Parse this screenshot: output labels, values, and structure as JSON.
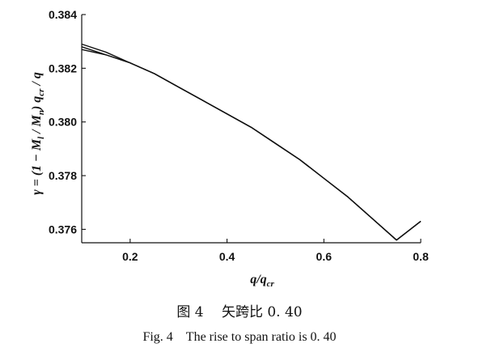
{
  "chart_data": {
    "type": "line",
    "xlabel": "q/q_cr",
    "ylabel": "γ = (1 − M_l / M_n) q_cr / q",
    "xlim": [
      0.1,
      0.8
    ],
    "ylim": [
      0.3755,
      0.384
    ],
    "x_ticks": [
      0.2,
      0.4,
      0.6,
      0.8
    ],
    "y_ticks": [
      0.376,
      0.378,
      0.38,
      0.382,
      0.384
    ],
    "x_tick_labels": [
      "0.2",
      "0.4",
      "0.6",
      "0.8"
    ],
    "y_tick_labels": [
      "0.376",
      "0.378",
      "0.380",
      "0.382",
      "0.384"
    ],
    "series": [
      {
        "x": [
          0.1,
          0.15,
          0.2,
          0.25,
          0.3,
          0.35,
          0.4,
          0.45,
          0.5,
          0.55,
          0.6,
          0.65,
          0.7,
          0.75,
          0.8
        ],
        "y": [
          0.3829,
          0.3826,
          0.3822,
          0.3818,
          0.3813,
          0.3808,
          0.3803,
          0.3798,
          0.3792,
          0.3786,
          0.3779,
          0.3772,
          0.3764,
          0.3756,
          0.3763
        ]
      },
      {
        "x": [
          0.1,
          0.15,
          0.2,
          0.25,
          0.3,
          0.35,
          0.4,
          0.45,
          0.5,
          0.55,
          0.6,
          0.65,
          0.7,
          0.75,
          0.8
        ],
        "y": [
          0.3828,
          0.3825,
          0.3822,
          0.3818,
          0.3813,
          0.3808,
          0.3803,
          0.3798,
          0.3792,
          0.3786,
          0.3779,
          0.3772,
          0.3764,
          0.3756,
          0.3763
        ]
      },
      {
        "x": [
          0.1,
          0.15,
          0.2,
          0.25,
          0.3,
          0.35,
          0.4,
          0.45,
          0.5,
          0.55,
          0.6,
          0.65,
          0.7,
          0.75,
          0.8
        ],
        "y": [
          0.3827,
          0.3825,
          0.3822,
          0.3818,
          0.3813,
          0.3808,
          0.3803,
          0.3798,
          0.3792,
          0.3786,
          0.3779,
          0.3772,
          0.3764,
          0.3756,
          0.3763
        ]
      }
    ]
  },
  "caption_cn": "图 4　 矢跨比 0. 40",
  "caption_en": "Fig. 4　The rise to span ratio is 0. 40"
}
